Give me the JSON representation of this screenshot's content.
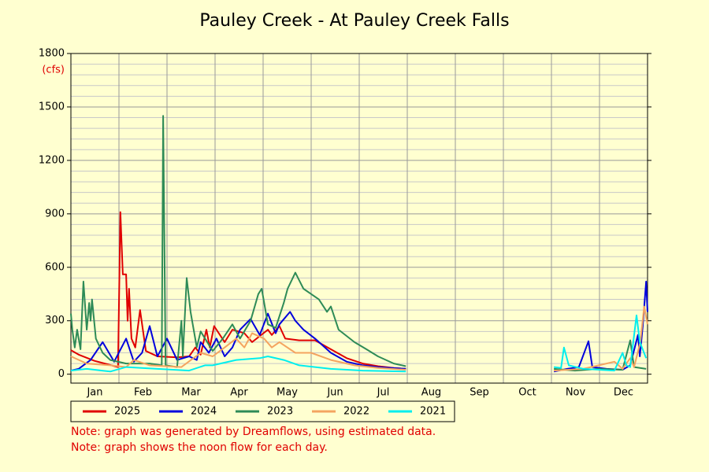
{
  "chart_data": {
    "type": "line",
    "title": "Pauley Creek - At Pauley Creek Falls",
    "y_unit": "(cfs)",
    "categories": [
      "Jan",
      "Feb",
      "Mar",
      "Apr",
      "May",
      "Jun",
      "Jul",
      "Aug",
      "Sep",
      "Oct",
      "Nov",
      "Dec"
    ],
    "xlim": [
      0,
      12
    ],
    "ylim": [
      -50,
      1800
    ],
    "yticks": [
      0,
      300,
      600,
      900,
      1200,
      1500,
      1800
    ],
    "grid": true,
    "series": [
      {
        "name": "2025",
        "color": "#e00000",
        "x": [
          0,
          0.16,
          0.49,
          0.98,
          1.03,
          1.08,
          1.15,
          1.18,
          1.21,
          1.26,
          1.34,
          1.44,
          1.56,
          1.8,
          2.21,
          2.46,
          2.59,
          2.7,
          2.82,
          2.89,
          2.98,
          3.2,
          3.36,
          3.61,
          3.77,
          4.1,
          4.18,
          4.34,
          4.46,
          4.75,
          5.08,
          5.41,
          5.74,
          6.07,
          6.39,
          6.72,
          6.97
        ],
        "values": [
          135,
          110,
          75,
          40,
          910,
          560,
          560,
          300,
          480,
          200,
          150,
          360,
          130,
          100,
          95,
          100,
          150,
          110,
          250,
          150,
          270,
          180,
          250,
          230,
          180,
          250,
          220,
          270,
          200,
          190,
          190,
          140,
          90,
          60,
          45,
          35,
          30
        ]
      },
      {
        "name": "2024",
        "color": "#0000dd",
        "x": [
          0,
          0.16,
          0.41,
          0.66,
          0.9,
          1.15,
          1.31,
          1.48,
          1.64,
          1.8,
          2.0,
          2.21,
          2.46,
          2.62,
          2.7,
          2.87,
          3.03,
          3.2,
          3.36,
          3.52,
          3.74,
          3.93,
          4.1,
          4.26,
          4.34,
          4.56,
          4.67,
          4.84,
          5.08,
          5.41,
          5.74,
          6.07,
          6.39,
          6.97,
          8,
          10.05,
          10.33,
          10.57,
          10.77,
          10.85,
          11.15,
          11.48,
          11.64,
          11.8,
          11.84,
          11.9,
          11.97,
          12.0
        ],
        "values": [
          20,
          30,
          80,
          180,
          70,
          200,
          70,
          120,
          270,
          100,
          200,
          80,
          100,
          80,
          180,
          120,
          200,
          100,
          150,
          250,
          310,
          220,
          340,
          230,
          280,
          350,
          300,
          250,
          200,
          120,
          70,
          50,
          40,
          30,
          null,
          15,
          30,
          40,
          185,
          40,
          30,
          25,
          50,
          220,
          100,
          270,
          520,
          350
        ]
      },
      {
        "name": "2023",
        "color": "#2e8b57",
        "x": [
          0,
          0.03,
          0.08,
          0.13,
          0.2,
          0.26,
          0.33,
          0.38,
          0.41,
          0.44,
          0.52,
          0.66,
          0.82,
          1.15,
          1.64,
          1.89,
          1.92,
          1.97,
          2.21,
          2.3,
          2.33,
          2.41,
          2.49,
          2.62,
          2.7,
          2.95,
          3.16,
          3.36,
          3.52,
          3.74,
          3.9,
          3.97,
          4.1,
          4.26,
          4.43,
          4.51,
          4.67,
          4.84,
          5.0,
          5.16,
          5.33,
          5.41,
          5.57,
          5.9,
          6.15,
          6.39,
          6.72,
          6.97,
          8,
          10.05,
          10.49,
          10.98,
          11.48,
          11.64,
          11.72,
          11.97
        ],
        "values": [
          340,
          250,
          150,
          250,
          140,
          520,
          250,
          400,
          300,
          420,
          200,
          120,
          80,
          60,
          60,
          50,
          1450,
          50,
          40,
          300,
          100,
          540,
          350,
          150,
          240,
          130,
          200,
          280,
          200,
          300,
          450,
          480,
          280,
          260,
          400,
          480,
          570,
          480,
          450,
          420,
          350,
          380,
          250,
          180,
          140,
          100,
          60,
          45,
          null,
          30,
          20,
          30,
          25,
          190,
          40,
          30
        ]
      },
      {
        "name": "2022",
        "color": "#f4a460",
        "x": [
          0,
          0.33,
          0.82,
          1.15,
          1.31,
          1.64,
          2.3,
          2.7,
          2.95,
          3.2,
          3.44,
          3.61,
          3.77,
          4.02,
          4.18,
          4.34,
          4.67,
          5.0,
          5.41,
          5.9,
          6.39,
          6.97,
          8,
          10.05,
          10.66,
          11.31,
          11.48,
          11.64,
          11.72,
          11.85,
          11.93,
          12.0
        ],
        "values": [
          100,
          60,
          50,
          40,
          80,
          50,
          40,
          120,
          100,
          150,
          200,
          150,
          230,
          200,
          150,
          180,
          120,
          120,
          80,
          50,
          35,
          25,
          null,
          20,
          30,
          70,
          30,
          90,
          40,
          180,
          380,
          280
        ]
      },
      {
        "name": "2021",
        "color": "#00eeee",
        "x": [
          0,
          0.33,
          0.82,
          1.15,
          1.8,
          2.46,
          2.79,
          2.95,
          3.44,
          3.93,
          4.1,
          4.43,
          4.75,
          5.41,
          6.07,
          6.97,
          8,
          10.05,
          10.2,
          10.26,
          10.36,
          10.66,
          11.31,
          11.48,
          11.56,
          11.64,
          11.77,
          11.84,
          11.97
        ],
        "values": [
          20,
          30,
          15,
          40,
          30,
          20,
          50,
          50,
          80,
          90,
          100,
          80,
          50,
          30,
          20,
          15,
          null,
          40,
          35,
          150,
          50,
          30,
          20,
          120,
          50,
          40,
          330,
          180,
          90
        ]
      }
    ],
    "notes": [
      "Note: graph was generated by Dreamflows, using estimated data.",
      "Note: graph shows the noon flow for each day."
    ]
  }
}
